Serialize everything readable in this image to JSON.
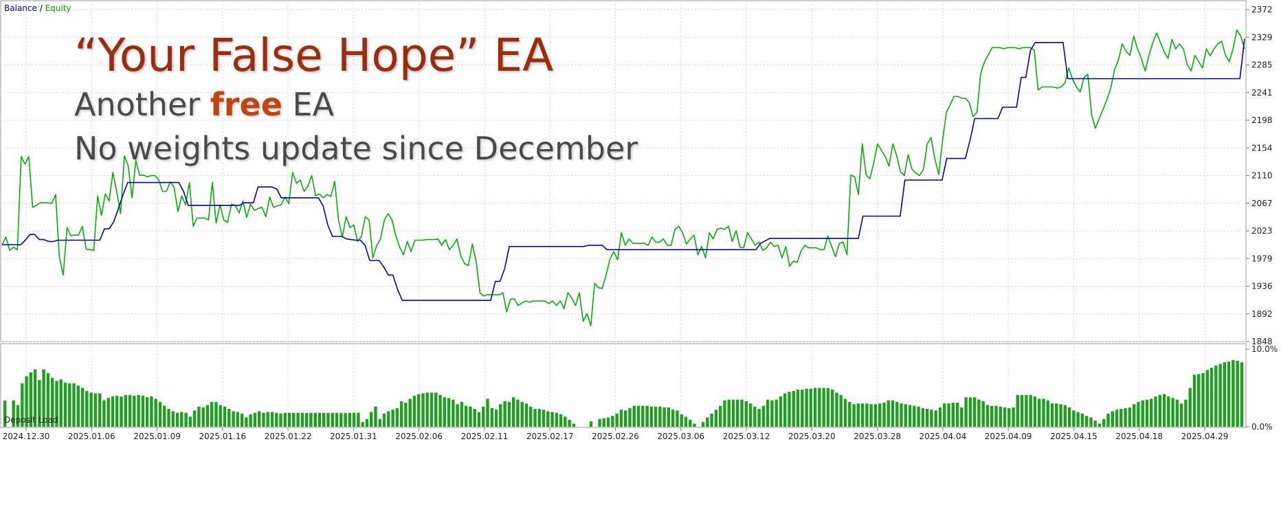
{
  "legend": {
    "balance": "Balance",
    "separator": "/",
    "equity": "Equity"
  },
  "title": {
    "main": "“Your False Hope” EA",
    "sub1_a": "Another ",
    "sub1_b": "free",
    "sub1_c": " EA",
    "sub2": "No weights update since December"
  },
  "colors": {
    "balance": "#0000b0",
    "equity": "#00b000",
    "bars": "#1ea01e",
    "grid": "#d2d2d2",
    "axis": "#7a7a7a"
  },
  "chart_data": [
    {
      "type": "line",
      "title": "",
      "series": [
        {
          "name": "Balance",
          "color": "#0000b0",
          "values": [
            2001,
            2001,
            2001,
            2001,
            2001,
            2008,
            2017,
            2017,
            2009,
            2009,
            2006,
            2006,
            2008,
            2008,
            2008,
            2008,
            2008,
            2008,
            2008,
            2008,
            2008,
            2008,
            2026,
            2026,
            2037,
            2058,
            2080,
            2099,
            2099,
            2099,
            2099,
            2099,
            2099,
            2099,
            2099,
            2099,
            2099,
            2099,
            2099,
            2085,
            2063,
            2063,
            2063,
            2063,
            2063,
            2063,
            2063,
            2063,
            2063,
            2063,
            2063,
            2063,
            2067,
            2067,
            2067,
            2092,
            2092,
            2092,
            2092,
            2089,
            2075,
            2075,
            2075,
            2075,
            2075,
            2075,
            2075,
            2075,
            2075,
            2062,
            2032,
            2014,
            2014,
            2014,
            2010,
            2009,
            2008,
            2008,
            2000,
            1976,
            1976,
            1976,
            1966,
            1953,
            1953,
            1930,
            1913,
            1913,
            1913,
            1913,
            1913,
            1913,
            1913,
            1913,
            1913,
            1913,
            1913,
            1913,
            1913,
            1913,
            1913,
            1913,
            1913,
            1913,
            1913,
            1913,
            1943,
            1943,
            1963,
            1998,
            1998,
            1998,
            1998,
            1998,
            1998,
            1998,
            1998,
            1998,
            1998,
            1998,
            1998,
            1998,
            1998,
            1998,
            1998,
            1998,
            2000,
            2000,
            2000,
            2000,
            1993,
            1993,
            1993,
            1993,
            1993,
            1993,
            1993,
            1993,
            1993,
            1993,
            1993,
            1993,
            1993,
            1993,
            1993,
            1993,
            1993,
            1993,
            1993,
            1993,
            1993,
            1993,
            1993,
            1993,
            1993,
            1993,
            1993,
            1993,
            1993,
            1993,
            1993,
            1993,
            1993,
            2003,
            2007,
            2011,
            2011,
            2011,
            2011,
            2011,
            2011,
            2011,
            2011,
            2011,
            2011,
            2011,
            2011,
            2011,
            2011,
            2011,
            2011,
            2011,
            2011,
            2011,
            2011,
            2046,
            2046,
            2046,
            2046,
            2046,
            2046,
            2046,
            2046,
            2046,
            2103,
            2103,
            2103,
            2103,
            2103,
            2103,
            2103,
            2103,
            2103,
            2137,
            2137,
            2137,
            2137,
            2137,
            2166,
            2200,
            2200,
            2200,
            2200,
            2200,
            2200,
            2218,
            2218,
            2218,
            2218,
            2265,
            2265,
            2308,
            2320,
            2320,
            2320,
            2320,
            2320,
            2320,
            2320,
            2263,
            2263,
            2263,
            2263,
            2263,
            2263,
            2263,
            2263,
            2263,
            2263,
            2263,
            2263,
            2263,
            2263,
            2263,
            2263,
            2263,
            2263,
            2263,
            2263,
            2263,
            2263,
            2263,
            2263,
            2263,
            2263,
            2263,
            2263,
            2263,
            2263,
            2263,
            2263,
            2263,
            2263,
            2263,
            2263,
            2263,
            2263,
            2326
          ]
        },
        {
          "name": "Equity",
          "color": "#00b000",
          "values": [
            2001,
            2013,
            1992,
            1997,
            1993,
            2140,
            2128,
            2140,
            2060,
            2063,
            2067,
            2067,
            2067,
            2066,
            2080,
            1981,
            1953,
            2028,
            2015,
            2016,
            2016,
            2030,
            1994,
            1993,
            1992,
            2078,
            2047,
            2081,
            2070,
            2115,
            2084,
            2050,
            2141,
            2125,
            2075,
            2134,
            2110,
            2111,
            2108,
            2110,
            2110,
            2103,
            2085,
            2085,
            2100,
            2092,
            2053,
            2078,
            2064,
            2099,
            2030,
            2043,
            2043,
            2043,
            2040,
            2099,
            2035,
            2064,
            2040,
            2036,
            2065,
            2063,
            2051,
            2070,
            2044,
            2065,
            2055,
            2058,
            2060,
            2045,
            2076,
            2060,
            2062,
            2064,
            2076,
            2066,
            2115,
            2098,
            2103,
            2085,
            2093,
            2110,
            2078,
            2081,
            2075,
            2080,
            2077,
            2101,
            2040,
            2013,
            2045,
            2028,
            2032,
            2006,
            2014,
            2045,
            2040,
            1980,
            2000,
            2010,
            2040,
            2050,
            2040,
            2015,
            1997,
            1985,
            2006,
            1990,
            2008,
            2008,
            2008,
            2009,
            2009,
            2009,
            2010,
            2000,
            2009,
            1993,
            2000,
            2010,
            1983,
            1971,
            1968,
            2002,
            1975,
            1925,
            1920,
            1922,
            1922,
            1922,
            1922,
            1925,
            1895,
            1915,
            1915,
            1905,
            1909,
            1912,
            1910,
            1912,
            1912,
            1912,
            1912,
            1908,
            1912,
            1905,
            1912,
            1900,
            1925,
            1917,
            1905,
            1925,
            1880,
            1892,
            1873,
            1940,
            1933,
            1932,
            1953,
            1978,
            1990,
            1977,
            2020,
            2000,
            2010,
            2003,
            2003,
            2003,
            2003,
            2000,
            2013,
            2005,
            2005,
            2010,
            2000,
            2000,
            2025,
            2030,
            2020,
            2002,
            2010,
            2016,
            1985,
            1998,
            1980,
            2020,
            2010,
            2025,
            2027,
            2025,
            2030,
            2006,
            2023,
            1997,
            1996,
            2020,
            2010,
            2000,
            2005,
            1992,
            1996,
            2005,
            1998,
            2000,
            1980,
            1998,
            1967,
            1975,
            1973,
            1991,
            2000,
            1996,
            1996,
            1996,
            1993,
            1993,
            2015,
            1998,
            1982,
            2003,
            2005,
            1985,
            2111,
            2108,
            2080,
            2160,
            2111,
            2105,
            2130,
            2160,
            2150,
            2140,
            2125,
            2160,
            2141,
            2116,
            2110,
            2143,
            2120,
            2114,
            2110,
            2120,
            2160,
            2170,
            2136,
            2112,
            2165,
            2210,
            2222,
            2235,
            2235,
            2232,
            2232,
            2225,
            2203,
            2210,
            2272,
            2290,
            2301,
            2312,
            2312,
            2312,
            2310,
            2312,
            2312,
            2312,
            2310,
            2312,
            2312,
            2312,
            2308,
            2245,
            2250,
            2250,
            2250,
            2250,
            2248,
            2250,
            2256,
            2280,
            2262,
            2250,
            2242,
            2265,
            2270,
            2205,
            2185,
            2200,
            2215,
            2230,
            2248,
            2278,
            2292,
            2318,
            2306,
            2300,
            2330,
            2310,
            2295,
            2275,
            2300,
            2320,
            2335,
            2320,
            2305,
            2295,
            2325,
            2310,
            2318,
            2310,
            2285,
            2275,
            2300,
            2290,
            2280,
            2310,
            2299,
            2310,
            2318,
            2322,
            2300,
            2290,
            2310,
            2340,
            2330,
            2310
          ]
        }
      ],
      "ylim": [
        1848,
        2372
      ],
      "y_ticks": [
        "2372",
        "2329",
        "2285",
        "2241",
        "2198",
        "2154",
        "2110",
        "2067",
        "2023",
        "1979",
        "1936",
        "1892",
        "1848"
      ],
      "grid": true
    },
    {
      "type": "bar",
      "title": "Deposit Load",
      "y_ticks": [
        "10.0%",
        "0.0%"
      ],
      "ylim": [
        0,
        10
      ],
      "values": [
        3.4,
        0,
        3.4,
        2.8,
        5.6,
        6.5,
        7.0,
        7.4,
        6.0,
        7.4,
        6.9,
        6.3,
        5.9,
        6.1,
        5.7,
        5.6,
        5.6,
        5.3,
        5.0,
        4.6,
        4.4,
        4.3,
        4.3,
        3.4,
        3.7,
        3.9,
        4.0,
        3.9,
        4.1,
        4.1,
        4.0,
        4.1,
        4.0,
        3.8,
        3.9,
        3.6,
        3.2,
        2.7,
        2.3,
        2.0,
        1.8,
        1.9,
        1.8,
        1.3,
        2.1,
        2.6,
        2.5,
        2.8,
        3.2,
        3.2,
        2.8,
        2.6,
        2.3,
        2.0,
        1.9,
        1.7,
        1.2,
        1.6,
        1.8,
        2.0,
        1.8,
        1.9,
        1.9,
        1.8,
        1.7,
        1.8,
        1.8,
        1.8,
        1.8,
        1.8,
        1.8,
        1.8,
        1.8,
        1.8,
        1.8,
        1.8,
        1.8,
        1.8,
        1.8,
        1.8,
        1.8,
        1.8,
        1.8,
        0.6,
        1.0,
        1.9,
        2.6,
        1.0,
        1.7,
        2.0,
        2.2,
        2.4,
        3.3,
        3.1,
        3.6,
        4.0,
        4.2,
        4.3,
        4.4,
        4.4,
        4.4,
        4.1,
        3.8,
        3.7,
        3.5,
        2.9,
        3.2,
        2.7,
        2.6,
        2.3,
        1.9,
        2.6,
        3.6,
        2.4,
        2.2,
        2.9,
        3.3,
        3.2,
        3.8,
        3.5,
        3.2,
        3.0,
        2.6,
        2.3,
        2.3,
        2.2,
        2.0,
        1.9,
        1.8,
        1.6,
        1.3,
        0.9,
        0.4,
        0,
        0,
        0,
        0.7,
        0,
        1.0,
        1.1,
        1.2,
        1.4,
        1.7,
        2.2,
        2.1,
        2.4,
        2.7,
        2.7,
        2.7,
        2.7,
        2.6,
        2.6,
        2.6,
        2.5,
        2.5,
        2.2,
        2.1,
        1.6,
        1.3,
        0.9,
        0.4,
        0,
        0.6,
        1.2,
        1.7,
        2.2,
        2.7,
        3.4,
        3.5,
        3.5,
        3.5,
        3.5,
        3.3,
        3.0,
        2.6,
        2.3,
        2.7,
        3.5,
        3.4,
        3.5,
        3.9,
        4.3,
        4.5,
        4.6,
        4.8,
        4.8,
        4.9,
        4.9,
        5.0,
        5.0,
        5.0,
        5.0,
        4.8,
        4.4,
        4.1,
        3.6,
        3.2,
        2.9,
        3.0,
        3.0,
        3.0,
        2.9,
        2.9,
        3.0,
        3.1,
        3.4,
        3.4,
        3.2,
        3.0,
        2.9,
        2.8,
        2.7,
        2.6,
        2.4,
        2.3,
        2.2,
        2.1,
        2.5,
        3.0,
        3.0,
        3.1,
        3.1,
        2.5,
        3.8,
        3.8,
        3.8,
        3.5,
        3.3,
        2.8,
        2.7,
        2.7,
        2.6,
        2.5,
        2.4,
        2.5,
        4.1,
        4.1,
        4.1,
        4.1,
        3.9,
        3.6,
        3.6,
        3.4,
        3.0,
        3.0,
        2.9,
        2.8,
        2.5,
        2.1,
        1.9,
        1.7,
        1.4,
        1.2,
        0.8,
        0.4,
        1.0,
        1.7,
        2.0,
        2.2,
        2.3,
        2.4,
        2.5,
        2.9,
        3.2,
        3.4,
        3.5,
        3.6,
        3.9,
        4.1,
        4.2,
        3.9,
        3.7,
        3.5,
        3.0,
        3.5,
        5.0,
        6.7,
        6.8,
        6.9,
        7.3,
        7.6,
        7.9,
        8.1,
        8.3,
        8.4,
        8.6,
        8.5,
        8.3
      ]
    }
  ],
  "x_ticks": [
    "2024.12.30",
    "2025.01.06",
    "2025.01.09",
    "2025.01.16",
    "2025.01.22",
    "2025.01.31",
    "2025.02.06",
    "2025.02.11",
    "2025.02.17",
    "2025.02.26",
    "2025.03.06",
    "2025.03.12",
    "2025.03.20",
    "2025.03.28",
    "2025.04.04",
    "2025.04.09",
    "2025.04.15",
    "2025.04.18",
    "2025.04.29"
  ]
}
